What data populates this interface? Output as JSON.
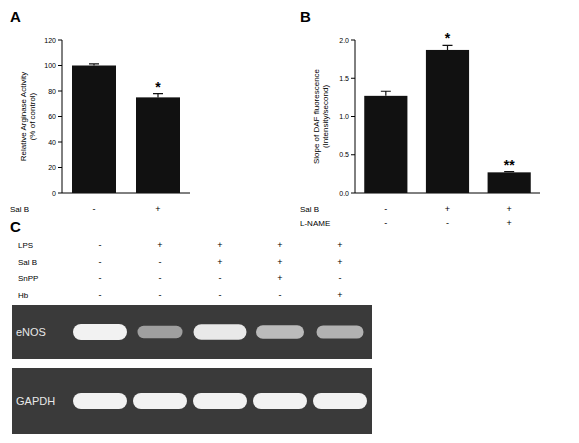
{
  "chart_data": [
    {
      "type": "bar",
      "title": "A",
      "ylabel": [
        "Relative Arginase Activity",
        "(% of control)"
      ],
      "categories": [
        null,
        null
      ],
      "values": [
        100,
        75
      ],
      "errors": [
        1.2,
        3
      ],
      "annotations": [
        null,
        "*"
      ],
      "treatment_rows": [
        {
          "label": "Sal B",
          "marks": [
            "-",
            "+"
          ]
        }
      ],
      "color": "#111111",
      "ylim": [
        0,
        120
      ],
      "yticks": [
        0,
        20,
        40,
        60,
        80,
        100,
        120
      ],
      "grid": false
    },
    {
      "type": "bar",
      "title": "B",
      "ylabel": [
        "Slope of DAF fluorescence",
        "(Intensity/second)"
      ],
      "categories": [
        null,
        null,
        null
      ],
      "values": [
        1.27,
        1.87,
        0.27
      ],
      "errors": [
        0.06,
        0.06,
        0.01
      ],
      "annotations": [
        null,
        "*",
        "**"
      ],
      "treatment_rows": [
        {
          "label": "Sal B",
          "marks": [
            "-",
            "+",
            "+"
          ]
        },
        {
          "label": "L-NAME",
          "marks": [
            "-",
            "-",
            "+"
          ]
        }
      ],
      "color": "#111111",
      "ylim": [
        0,
        2
      ],
      "yticks": [
        {
          "value": 0,
          "label": "0.0"
        },
        {
          "value": 0.5,
          "label": "0.5"
        },
        {
          "value": 1,
          "label": "1.0"
        },
        {
          "value": 1.5,
          "label": "1.5"
        },
        {
          "value": 2,
          "label": "2.0"
        }
      ],
      "grid": false
    }
  ],
  "gel": {
    "title": "C",
    "rows": [
      {
        "label": "LPS",
        "marks": [
          "-",
          "+",
          "+",
          "+",
          "+"
        ]
      },
      {
        "label": "Sal B",
        "marks": [
          "-",
          "-",
          "+",
          "+",
          "+"
        ]
      },
      {
        "label": "SnPP",
        "marks": [
          "-",
          "-",
          "-",
          "+",
          "-"
        ]
      },
      {
        "label": "Hb",
        "marks": [
          "-",
          "-",
          "-",
          "-",
          "+"
        ]
      }
    ],
    "blots": [
      {
        "label": "eNOS",
        "band_intensity": [
          1.0,
          0.55,
          0.95,
          0.7,
          0.65
        ]
      },
      {
        "label": "GAPDH",
        "band_intensity": [
          1.0,
          1.0,
          1.0,
          1.0,
          1.0
        ]
      }
    ]
  }
}
